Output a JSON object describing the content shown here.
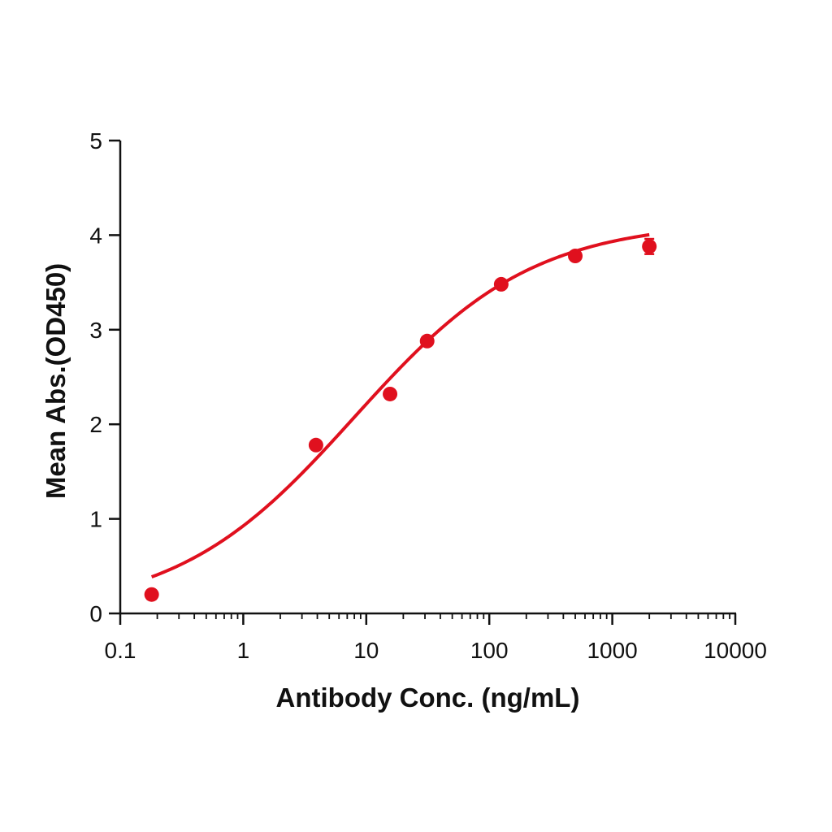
{
  "chart_data": {
    "type": "scatter",
    "title": "",
    "xlabel": "Antibody Conc. (ng/mL)",
    "ylabel": "Mean Abs.(OD450)",
    "xscale": "log",
    "xlim": [
      0.1,
      10000
    ],
    "ylim": [
      0,
      5
    ],
    "x_ticks": [
      0.1,
      1,
      10,
      100,
      1000,
      10000
    ],
    "x_tick_labels": [
      "0.1",
      "1",
      "10",
      "100",
      "1000",
      "10000"
    ],
    "y_ticks": [
      0,
      1,
      2,
      3,
      4,
      5
    ],
    "y_tick_labels": [
      "0",
      "1",
      "2",
      "3",
      "4",
      "5"
    ],
    "grid": false,
    "legend": "none",
    "color": "#e0101e",
    "series": [
      {
        "points": [
          {
            "x": 0.18,
            "y": 0.2
          },
          {
            "x": 3.9,
            "y": 1.78
          },
          {
            "x": 15.6,
            "y": 2.32
          },
          {
            "x": 31.25,
            "y": 2.88
          },
          {
            "x": 125,
            "y": 3.48
          },
          {
            "x": 500,
            "y": 3.78
          },
          {
            "x": 2000,
            "y": 3.88
          }
        ],
        "error": [
          0,
          0,
          0,
          0,
          0,
          0,
          0.08
        ]
      }
    ],
    "fit_curve": {
      "model": "4PL",
      "bottom": 0.0,
      "top": 4.15,
      "ec50": 8.0,
      "hill": 0.6,
      "x_range": [
        0.18,
        2000
      ]
    }
  }
}
